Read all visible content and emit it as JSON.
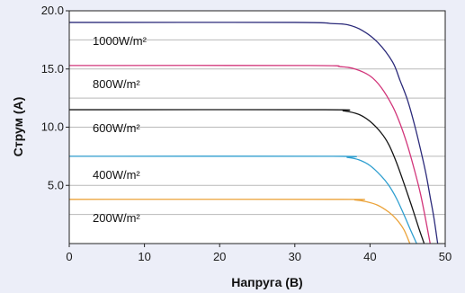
{
  "chart_data": {
    "type": "line",
    "title": "",
    "xlabel": "Напруга (В)",
    "ylabel": "Струм (А)",
    "xlim": [
      0,
      50
    ],
    "ylim": [
      0,
      20
    ],
    "x_ticks": [
      "0",
      "10",
      "20",
      "30",
      "40",
      "50"
    ],
    "y_ticks": [
      "5.0",
      "10.0",
      "15.0",
      "20.0"
    ],
    "grid": "horizontal",
    "legend": "none",
    "series": [
      {
        "name": "1000W/m²",
        "color": "#2b2a7a",
        "points": [
          [
            0,
            19.0
          ],
          [
            30,
            19.0
          ],
          [
            35,
            18.9
          ],
          [
            37,
            18.8
          ],
          [
            39,
            18.3
          ],
          [
            41,
            17.3
          ],
          [
            43,
            15.6
          ],
          [
            44,
            14.0
          ],
          [
            45,
            12.3
          ],
          [
            46,
            10.0
          ],
          [
            47,
            7.3
          ],
          [
            47.5,
            5.8
          ],
          [
            48,
            4.0
          ],
          [
            48.5,
            2.2
          ],
          [
            49,
            0
          ]
        ]
      },
      {
        "name": "800W/m²",
        "color": "#d2357a",
        "points": [
          [
            0,
            15.3
          ],
          [
            32,
            15.3
          ],
          [
            36,
            15.2
          ],
          [
            38,
            15.0
          ],
          [
            40,
            14.4
          ],
          [
            41.5,
            13.4
          ],
          [
            43,
            11.8
          ],
          [
            44,
            10.3
          ],
          [
            45,
            8.4
          ],
          [
            46,
            6.1
          ],
          [
            46.7,
            4.3
          ],
          [
            47.3,
            2.4
          ],
          [
            48,
            0
          ]
        ]
      },
      {
        "name": "600W/m²",
        "color": "#141414",
        "points": [
          [
            0,
            11.5
          ],
          [
            34,
            11.5
          ],
          [
            36.5,
            11.4
          ],
          [
            38.5,
            11.1
          ],
          [
            40,
            10.5
          ],
          [
            41.5,
            9.5
          ],
          [
            42.5,
            8.5
          ],
          [
            43.5,
            7.0
          ],
          [
            44.5,
            5.2
          ],
          [
            45.5,
            3.3
          ],
          [
            46.5,
            1.3
          ],
          [
            47.2,
            0
          ]
        ]
      },
      {
        "name": "400W/m²",
        "color": "#2f9fd0",
        "points": [
          [
            0,
            7.5
          ],
          [
            35,
            7.5
          ],
          [
            37,
            7.4
          ],
          [
            38.5,
            7.2
          ],
          [
            40,
            6.7
          ],
          [
            41.5,
            5.8
          ],
          [
            42.5,
            5.0
          ],
          [
            43.5,
            3.9
          ],
          [
            44.5,
            2.5
          ],
          [
            45.5,
            1.0
          ],
          [
            46.2,
            0
          ]
        ]
      },
      {
        "name": "200W/m²",
        "color": "#eba33a",
        "points": [
          [
            0,
            3.8
          ],
          [
            36,
            3.8
          ],
          [
            38,
            3.75
          ],
          [
            39.5,
            3.6
          ],
          [
            41,
            3.3
          ],
          [
            42.5,
            2.7
          ],
          [
            43.5,
            2.1
          ],
          [
            44.5,
            1.2
          ],
          [
            45.3,
            0
          ]
        ]
      }
    ]
  }
}
